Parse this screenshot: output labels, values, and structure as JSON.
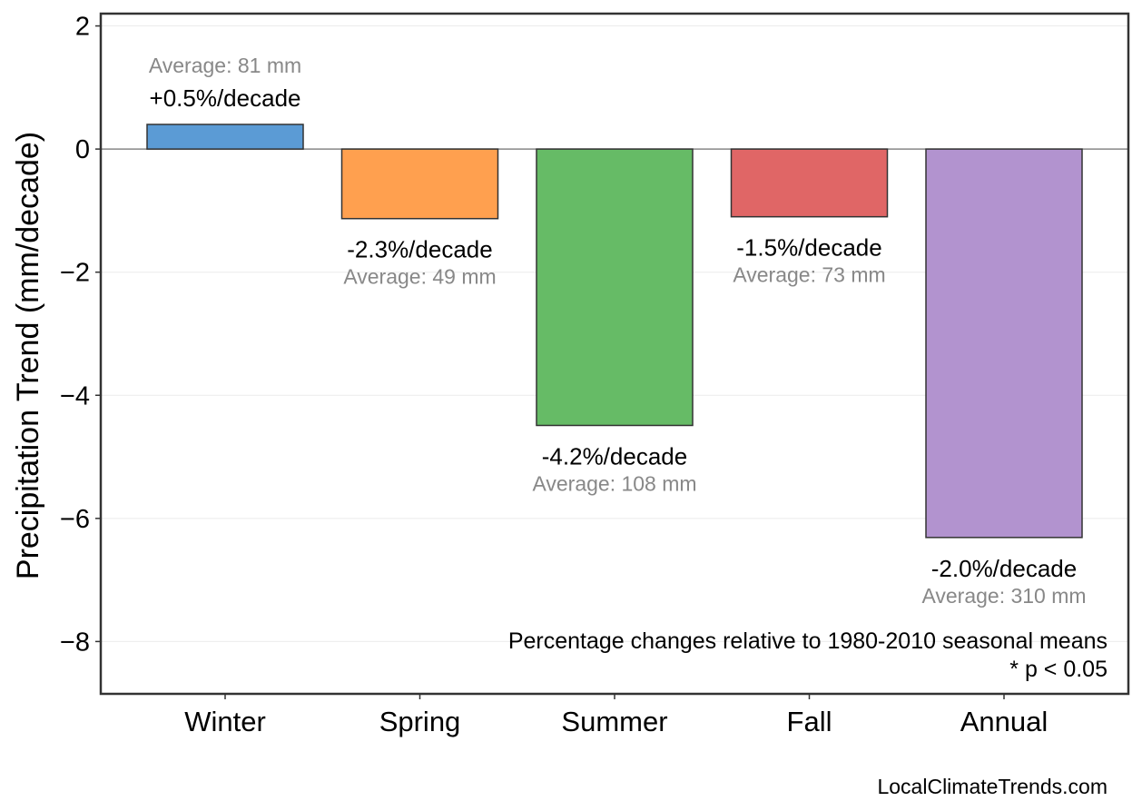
{
  "chart_data": {
    "type": "bar",
    "categories": [
      "Winter",
      "Spring",
      "Summer",
      "Fall",
      "Annual"
    ],
    "values": [
      0.4,
      -1.13,
      -4.49,
      -1.1,
      -6.31
    ],
    "colors": [
      "#5b9bd5",
      "#ffa04f",
      "#66bb66",
      "#e06666",
      "#b293cf"
    ],
    "pct_labels": [
      "+0.5%/decade",
      "-2.3%/decade",
      "-4.2%/decade",
      "-1.5%/decade",
      "-2.0%/decade"
    ],
    "avg_labels": [
      "Average: 81 mm",
      "Average: 49 mm",
      "Average: 108 mm",
      "Average: 73 mm",
      "Average: 310 mm"
    ],
    "ylabel": "Precipitation Trend (mm/decade)",
    "xlabel": "",
    "title": "",
    "ylim": [
      -8.85,
      2.2
    ],
    "yticks": [
      2,
      0,
      -2,
      -4,
      -6,
      -8
    ],
    "ytick_labels": [
      "2",
      "0",
      "−2",
      "−4",
      "−6",
      "−8"
    ],
    "grid": true,
    "zero_line": true
  },
  "notes": {
    "line1": "Percentage changes relative to 1980-2010 seasonal means",
    "line2": "* p < 0.05"
  },
  "source": "LocalClimateTrends.com"
}
